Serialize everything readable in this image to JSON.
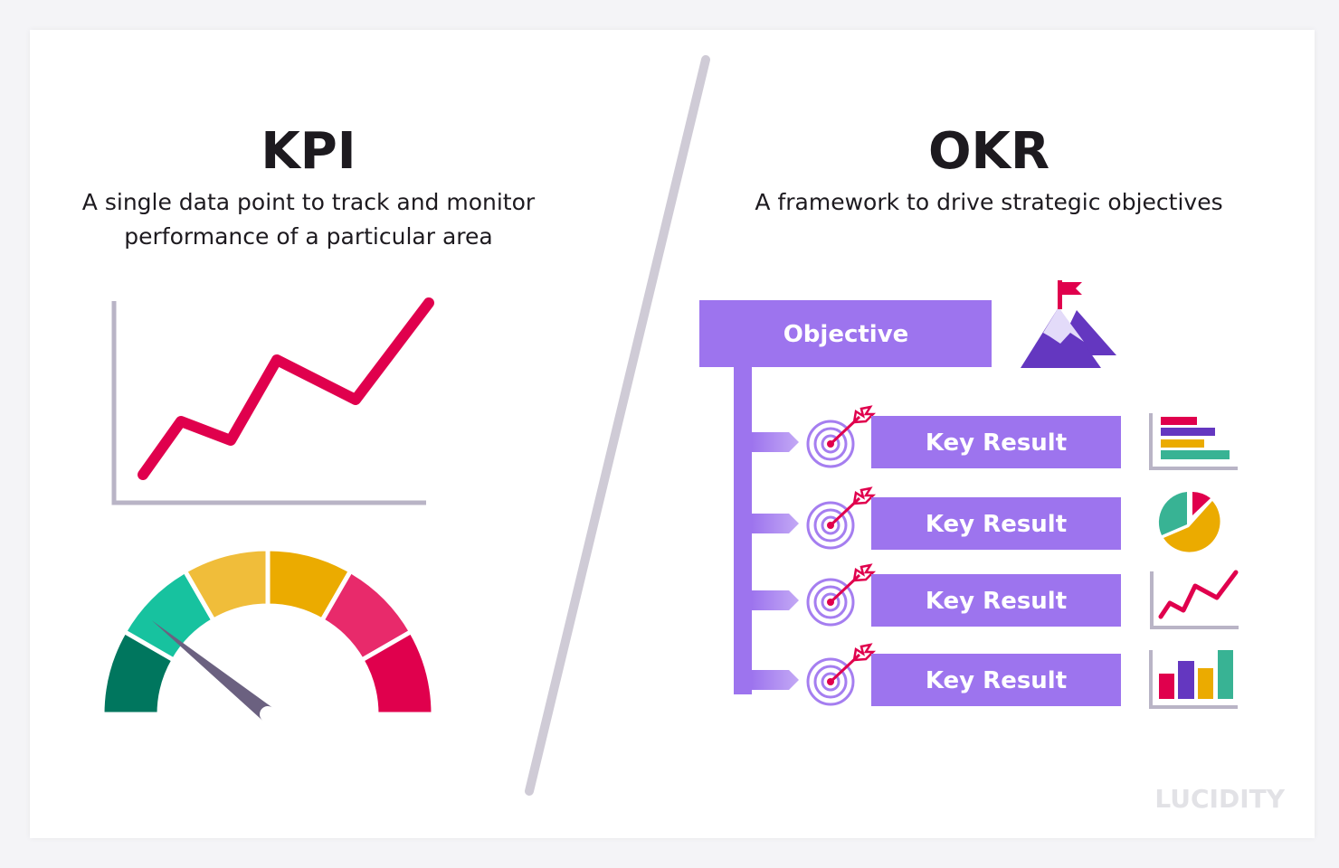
{
  "kpi": {
    "title": "KPI",
    "subtitle_line1": "A single data point to track and monitor",
    "subtitle_line2": "performance of a particular area"
  },
  "okr": {
    "title": "OKR",
    "subtitle": "A framework to drive strategic objectives",
    "objective_label": "Objective",
    "key_results": [
      "Key Result",
      "Key Result",
      "Key Result",
      "Key Result"
    ]
  },
  "gauge": {
    "segment_colors": [
      "#00765e",
      "#17c29f",
      "#f0bd3a",
      "#ebab00",
      "#e82a6b",
      "#e0004d"
    ],
    "needle_color": "#6b6180"
  },
  "colors": {
    "accent_purple": "#9d74ee",
    "dark_purple": "#6437c0",
    "red": "#e0004d",
    "yellow": "#ebab00",
    "teal": "#38b394",
    "axis_gray": "#b9b4c6",
    "divider": "#cfcbd6"
  },
  "icons": [
    "trend-line-chart-icon",
    "speedometer-gauge-icon",
    "mountain-flag-icon",
    "target-arrow-icon",
    "horizontal-bar-chart-icon",
    "pie-chart-icon",
    "line-chart-icon",
    "column-chart-icon"
  ],
  "logo": "LUCIDITY"
}
